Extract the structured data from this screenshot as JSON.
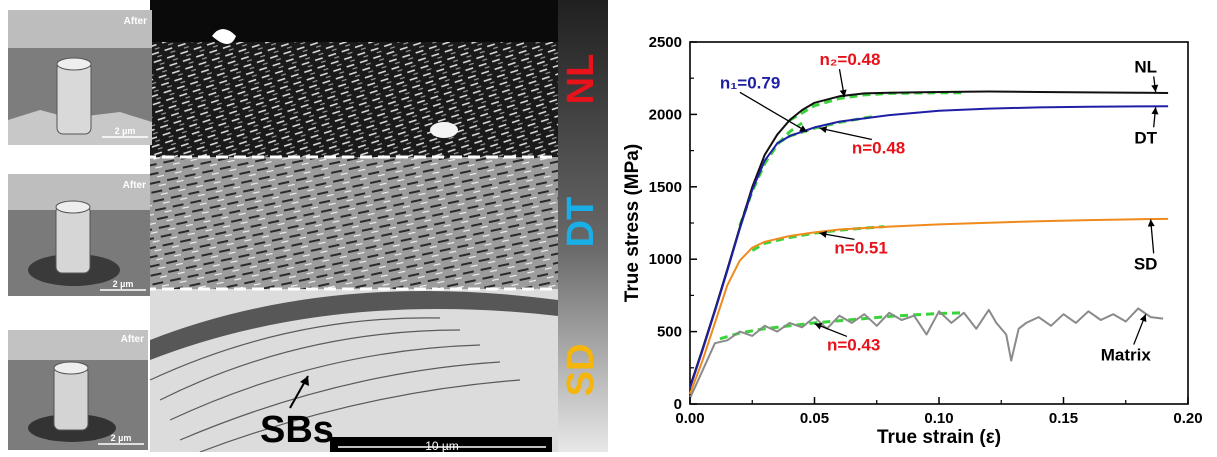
{
  "micrograph": {
    "regions": [
      {
        "label": "NL",
        "color": "#e8121b"
      },
      {
        "label": "DT",
        "color": "#19aee6"
      },
      {
        "label": "SD",
        "color": "#f5b50a"
      }
    ],
    "inset_caption": "After",
    "inset_scale": "2 µm",
    "bands_label": "SBs",
    "scale_bar": "10 µm"
  },
  "chart_data": {
    "type": "line",
    "xlabel": "True strain (ε)",
    "ylabel": "True stress (MPa)",
    "xlim": [
      0.0,
      0.2
    ],
    "ylim": [
      0,
      2500
    ],
    "xticks": [
      "0.00",
      "0.05",
      "0.10",
      "0.15",
      "0.20"
    ],
    "yticks": [
      "0",
      "500",
      "1000",
      "1500",
      "2000",
      "2500"
    ],
    "grid": false,
    "series": [
      {
        "name": "NL",
        "color": "#111111",
        "x": [
          0,
          0.005,
          0.01,
          0.015,
          0.02,
          0.025,
          0.03,
          0.035,
          0.04,
          0.045,
          0.05,
          0.06,
          0.07,
          0.08,
          0.1,
          0.12,
          0.14,
          0.16,
          0.18,
          0.192
        ],
        "y": [
          120,
          380,
          650,
          930,
          1220,
          1500,
          1720,
          1860,
          1960,
          2030,
          2080,
          2125,
          2145,
          2150,
          2155,
          2158,
          2155,
          2152,
          2150,
          2148
        ]
      },
      {
        "name": "DT",
        "color": "#1f1fa6",
        "x": [
          0,
          0.005,
          0.01,
          0.015,
          0.02,
          0.025,
          0.03,
          0.035,
          0.04,
          0.05,
          0.06,
          0.08,
          0.1,
          0.12,
          0.14,
          0.16,
          0.18,
          0.192
        ],
        "y": [
          110,
          370,
          640,
          920,
          1210,
          1480,
          1680,
          1800,
          1850,
          1910,
          1950,
          1995,
          2025,
          2040,
          2048,
          2053,
          2055,
          2056
        ]
      },
      {
        "name": "SD",
        "color": "#f08a1c",
        "x": [
          0,
          0.005,
          0.01,
          0.015,
          0.02,
          0.025,
          0.03,
          0.04,
          0.05,
          0.06,
          0.08,
          0.1,
          0.12,
          0.14,
          0.16,
          0.18,
          0.192
        ],
        "y": [
          70,
          300,
          560,
          820,
          990,
          1080,
          1120,
          1160,
          1185,
          1205,
          1225,
          1240,
          1252,
          1262,
          1270,
          1276,
          1278
        ]
      },
      {
        "name": "Matrix",
        "color": "#8a8a8a",
        "x": [
          0,
          0.005,
          0.01,
          0.015,
          0.02,
          0.025,
          0.03,
          0.035,
          0.04,
          0.045,
          0.05,
          0.055,
          0.06,
          0.065,
          0.07,
          0.075,
          0.08,
          0.085,
          0.09,
          0.095,
          0.1,
          0.105,
          0.11,
          0.115,
          0.12,
          0.123,
          0.127,
          0.129,
          0.132,
          0.135,
          0.14,
          0.145,
          0.15,
          0.155,
          0.16,
          0.165,
          0.17,
          0.175,
          0.18,
          0.185,
          0.19
        ],
        "y": [
          40,
          230,
          420,
          440,
          500,
          470,
          540,
          500,
          560,
          530,
          600,
          520,
          610,
          560,
          620,
          540,
          630,
          580,
          610,
          480,
          640,
          560,
          630,
          520,
          650,
          560,
          480,
          300,
          520,
          560,
          600,
          540,
          620,
          560,
          640,
          580,
          620,
          570,
          660,
          600,
          590
        ]
      }
    ],
    "fits": [
      {
        "x": [
          0.02,
          0.025,
          0.03,
          0.035,
          0.04,
          0.045
        ],
        "y": [
          1230,
          1470,
          1660,
          1790,
          1880,
          1940
        ]
      },
      {
        "x": [
          0.04,
          0.05,
          0.06,
          0.07,
          0.08,
          0.09,
          0.1,
          0.11
        ],
        "y": [
          1960,
          2060,
          2110,
          2135,
          2145,
          2148,
          2150,
          2150
        ]
      },
      {
        "x": [
          0.035,
          0.04,
          0.05,
          0.06,
          0.07,
          0.075
        ],
        "y": [
          1800,
          1850,
          1905,
          1945,
          1975,
          1990
        ]
      },
      {
        "x": [
          0.025,
          0.03,
          0.04,
          0.05,
          0.06,
          0.07,
          0.078
        ],
        "y": [
          1060,
          1110,
          1150,
          1180,
          1200,
          1215,
          1225
        ]
      },
      {
        "x": [
          0.012,
          0.02,
          0.03,
          0.04,
          0.05,
          0.06,
          0.07,
          0.08,
          0.09,
          0.1,
          0.11
        ],
        "y": [
          450,
          490,
          520,
          540,
          560,
          575,
          590,
          605,
          615,
          625,
          630
        ]
      }
    ],
    "fit_color": "#3bd33b",
    "annotations": [
      {
        "text": "n₂=0.48",
        "color": "#e8121b",
        "x": 0.052,
        "y": 2340,
        "to_x": 0.062,
        "to_y": 2120
      },
      {
        "text": "n₁=0.79",
        "color": "#1f1fa6",
        "x": 0.012,
        "y": 2180,
        "to_x": 0.047,
        "to_y": 1880
      },
      {
        "text": "n=0.48",
        "color": "#e8121b",
        "x": 0.065,
        "y": 1730,
        "to_x": 0.052,
        "to_y": 1905
      },
      {
        "text": "n=0.51",
        "color": "#e8121b",
        "x": 0.058,
        "y": 1040,
        "to_x": 0.052,
        "to_y": 1180
      },
      {
        "text": "n=0.43",
        "color": "#e8121b",
        "x": 0.055,
        "y": 370,
        "to_x": 0.05,
        "to_y": 555
      }
    ],
    "series_labels": [
      {
        "text": "NL",
        "x": 0.183,
        "y": 2290,
        "to_x": 0.187,
        "to_y": 2155
      },
      {
        "text": "DT",
        "x": 0.183,
        "y": 1800,
        "to_x": 0.187,
        "to_y": 2050
      },
      {
        "text": "SD",
        "x": 0.183,
        "y": 930,
        "to_x": 0.185,
        "to_y": 1275
      },
      {
        "text": "Matrix",
        "x": 0.175,
        "y": 300,
        "to_x": 0.183,
        "to_y": 620
      }
    ]
  }
}
